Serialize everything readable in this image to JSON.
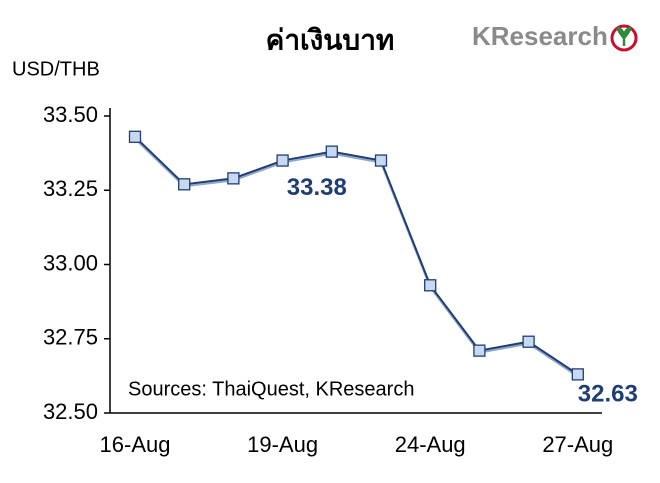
{
  "chart_data": {
    "type": "line",
    "title": "ค่าเงินบาท",
    "y_label": "USD/THB",
    "annotation": "Sources: ThaiQuest, KResearch",
    "logo": "KResearch",
    "categories": [
      "16-Aug",
      null,
      null,
      "19-Aug",
      null,
      null,
      "24-Aug",
      null,
      null,
      "27-Aug"
    ],
    "series": [
      {
        "name": "USD/THB",
        "color": "#1f3e73",
        "marker_color": "#c6d9f1",
        "values": [
          33.43,
          33.27,
          33.29,
          33.35,
          33.38,
          33.35,
          32.93,
          32.71,
          32.74,
          32.63
        ],
        "value_labels": [
          null,
          null,
          null,
          null,
          "33.38",
          null,
          null,
          null,
          null,
          "32.63"
        ]
      }
    ],
    "ylim": [
      32.5,
      33.5
    ],
    "yticks": [
      {
        "value": 32.5,
        "label": "32.50"
      },
      32.75,
      {
        "value": 33.0,
        "label": "33.00"
      },
      33.25,
      {
        "value": 33.5,
        "label": "33.50"
      }
    ]
  }
}
